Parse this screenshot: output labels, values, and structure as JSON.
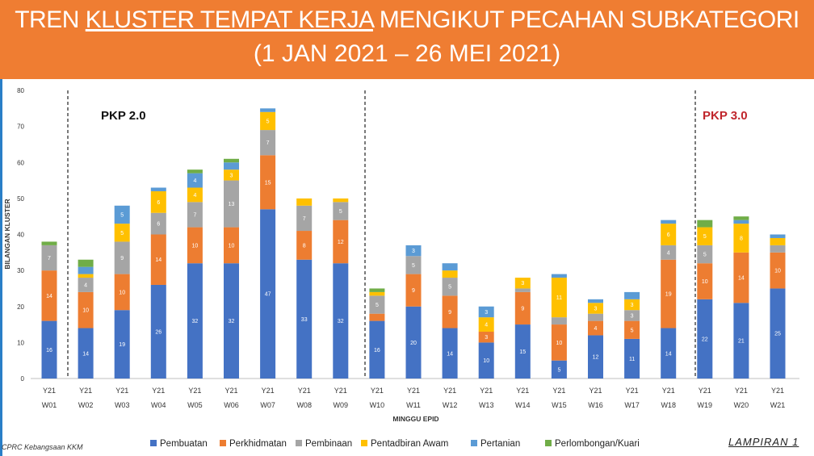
{
  "header": {
    "title_part1": "TREN ",
    "title_underlined": "KLUSTER TEMPAT KERJA",
    "title_part2": " MENGIKUT PECAHAN SUBKATEGORI",
    "subtitle": "(1 JAN 2021 – 26 MEI 2021)"
  },
  "footer": {
    "source": "CPRC Kebangsaan KKM",
    "appendix": "LAMPIRAN 1"
  },
  "colors": {
    "banner": "#ef7d32",
    "Pembuatan": "#4472c4",
    "Perkhidmatan": "#ed7d31",
    "Pembinaan": "#a5a5a5",
    "Pentadbiran Awam": "#ffc000",
    "Pertanian": "#5b9bd5",
    "Perlombongan/Kuari": "#70ad47"
  },
  "chart_data": {
    "type": "bar",
    "stacked": true,
    "xlabel": "MINGGU EPID",
    "ylabel": "BILANGAN KLUSTER",
    "ylim": [
      0,
      80
    ],
    "yticks": [
      0,
      10,
      20,
      30,
      40,
      50,
      60,
      70,
      80
    ],
    "grid": false,
    "legend_position": "bottom",
    "categories": [
      [
        "Y21",
        "W01"
      ],
      [
        "Y21",
        "W02"
      ],
      [
        "Y21",
        "W03"
      ],
      [
        "Y21",
        "W04"
      ],
      [
        "Y21",
        "W05"
      ],
      [
        "Y21",
        "W06"
      ],
      [
        "Y21",
        "W07"
      ],
      [
        "Y21",
        "W08"
      ],
      [
        "Y21",
        "W09"
      ],
      [
        "Y21",
        "W10"
      ],
      [
        "Y21",
        "W11"
      ],
      [
        "Y21",
        "W12"
      ],
      [
        "Y21",
        "W13"
      ],
      [
        "Y21",
        "W14"
      ],
      [
        "Y21",
        "W15"
      ],
      [
        "Y21",
        "W16"
      ],
      [
        "Y21",
        "W17"
      ],
      [
        "Y21",
        "W18"
      ],
      [
        "Y21",
        "W19"
      ],
      [
        "Y21",
        "W20"
      ],
      [
        "Y21",
        "W21"
      ]
    ],
    "series": [
      {
        "name": "Pembuatan",
        "values": [
          16,
          14,
          19,
          26,
          32,
          32,
          47,
          33,
          32,
          16,
          20,
          14,
          10,
          15,
          5,
          12,
          11,
          14,
          22,
          21,
          25
        ]
      },
      {
        "name": "Perkhidmatan",
        "values": [
          14,
          10,
          10,
          14,
          10,
          10,
          15,
          8,
          12,
          2,
          9,
          9,
          3,
          9,
          10,
          4,
          5,
          19,
          10,
          14,
          10
        ]
      },
      {
        "name": "Pembinaan",
        "values": [
          7,
          4,
          9,
          6,
          7,
          13,
          7,
          7,
          5,
          5,
          5,
          5,
          0,
          1,
          2,
          2,
          3,
          4,
          5,
          0,
          2
        ]
      },
      {
        "name": "Pentadbiran Awam",
        "values": [
          0,
          1,
          5,
          6,
          4,
          3,
          5,
          2,
          1,
          1,
          0,
          2,
          4,
          3,
          11,
          3,
          3,
          6,
          5,
          8,
          2
        ]
      },
      {
        "name": "Pertanian",
        "values": [
          0,
          2,
          5,
          1,
          4,
          2,
          1,
          0,
          0,
          0,
          3,
          2,
          3,
          0,
          1,
          1,
          2,
          1,
          0,
          1,
          1
        ]
      },
      {
        "name": "Perlombongan/Kuari",
        "values": [
          1,
          2,
          0,
          0,
          1,
          1,
          0,
          0,
          0,
          1,
          0,
          0,
          0,
          0,
          0,
          0,
          0,
          0,
          2,
          1,
          0
        ]
      }
    ],
    "annotations": [
      {
        "text": "PKP 2.0",
        "color": "#111111"
      },
      {
        "text": "PKP 3.0",
        "color": "#c0262c"
      }
    ]
  }
}
